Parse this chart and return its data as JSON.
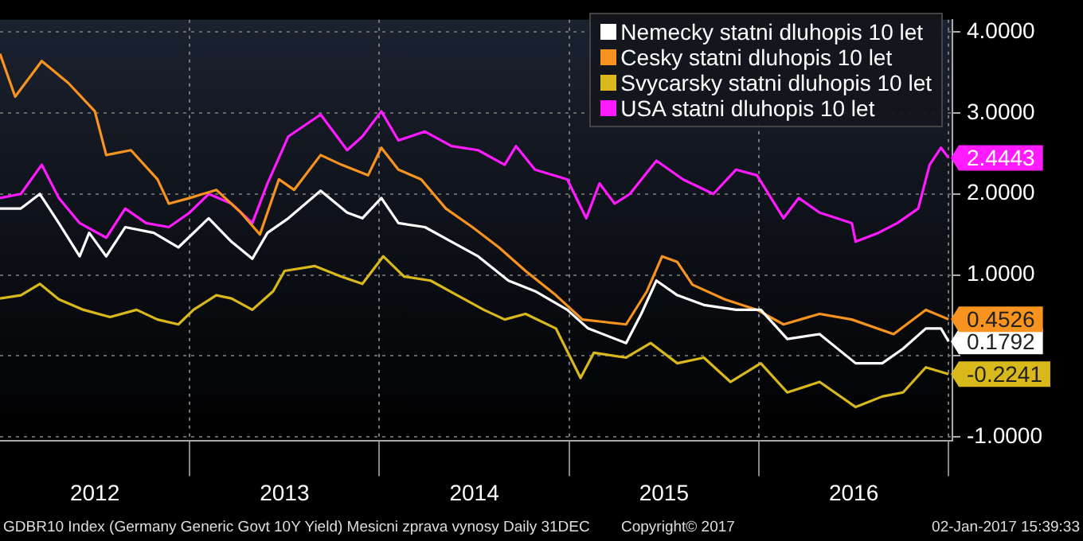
{
  "chart_data": {
    "type": "line",
    "xlim": [
      2012,
      2017.02
    ],
    "xticks": [
      {
        "value": 2012.5,
        "label": "2012"
      },
      {
        "value": 2013,
        "label": null
      },
      {
        "value": 2013.5,
        "label": "2013"
      },
      {
        "value": 2014,
        "label": null
      },
      {
        "value": 2014.5,
        "label": "2014"
      },
      {
        "value": 2015,
        "label": null
      },
      {
        "value": 2015.5,
        "label": "2015"
      },
      {
        "value": 2016,
        "label": null
      },
      {
        "value": 2016.5,
        "label": "2016"
      },
      {
        "value": 2017,
        "label": null
      }
    ],
    "ylim": [
      -1.05,
      4.15
    ],
    "yticks": [
      {
        "value": -1,
        "label": "-1.0000"
      },
      {
        "value": 0,
        "label": null
      },
      {
        "value": 1,
        "label": "1.0000"
      },
      {
        "value": 2,
        "label": "2.0000"
      },
      {
        "value": 3,
        "label": "3.0000"
      },
      {
        "value": 4,
        "label": "4.0000"
      }
    ],
    "grid": true,
    "legend": "top right",
    "line_style": "solid",
    "marker": "none",
    "annotations": [
      "GDBR10 Index (Germany Generic Govt 10Y Yield) Mesicni zprava vynosy  Daily 31DEC",
      "Copyright© 2017",
      "02-Jan-2017 15:39:33"
    ],
    "series": [
      {
        "name": "Nemecky statni dluhopis 10 let",
        "color": "#ffffff",
        "x": [
          2012.0,
          2012.11,
          2012.21,
          2012.31,
          2012.42,
          2012.47,
          2012.56,
          2012.66,
          2012.81,
          2012.94,
          2013.1,
          2013.22,
          2013.33,
          2013.41,
          2013.52,
          2013.69,
          2013.83,
          2013.91,
          2014.01,
          2014.1,
          2014.24,
          2014.38,
          2014.52,
          2014.68,
          2014.82,
          2014.99,
          2015.1,
          2015.3,
          2015.38,
          2015.46,
          2015.57,
          2015.71,
          2015.88,
          2016.01,
          2016.15,
          2016.32,
          2016.51,
          2016.65,
          2016.76,
          2016.88,
          2016.96,
          2017.0
        ],
        "values": [
          1.82,
          1.82,
          2.0,
          1.64,
          1.23,
          1.52,
          1.23,
          1.59,
          1.52,
          1.34,
          1.7,
          1.41,
          1.2,
          1.52,
          1.7,
          2.04,
          1.77,
          1.7,
          1.95,
          1.64,
          1.59,
          1.41,
          1.23,
          0.93,
          0.8,
          0.57,
          0.34,
          0.16,
          0.52,
          0.93,
          0.75,
          0.63,
          0.57,
          0.57,
          0.21,
          0.27,
          -0.09,
          -0.09,
          0.09,
          0.34,
          0.34,
          0.1792
        ],
        "value_labels": [
          null,
          null,
          null,
          null,
          null,
          null,
          null,
          null,
          null,
          null,
          null,
          null,
          null,
          null,
          null,
          null,
          null,
          null,
          null,
          null,
          null,
          null,
          null,
          null,
          null,
          null,
          null,
          null,
          null,
          null,
          null,
          null,
          null,
          null,
          null,
          null,
          null,
          null,
          null,
          null,
          null,
          "0.1792"
        ]
      },
      {
        "name": "Cesky statni dluhopis 10 let",
        "color": "#f7931e",
        "x": [
          2012.0,
          2012.08,
          2012.22,
          2012.36,
          2012.5,
          2012.56,
          2012.69,
          2012.83,
          2012.89,
          2013.0,
          2013.14,
          2013.27,
          2013.37,
          2013.47,
          2013.55,
          2013.69,
          2013.8,
          2013.94,
          2014.01,
          2014.1,
          2014.22,
          2014.35,
          2014.49,
          2014.63,
          2014.77,
          2014.93,
          2015.07,
          2015.3,
          2015.41,
          2015.49,
          2015.57,
          2015.65,
          2015.82,
          2015.99,
          2016.13,
          2016.32,
          2016.49,
          2016.71,
          2016.88,
          2017.0
        ],
        "values": [
          3.73,
          3.2,
          3.64,
          3.37,
          3.02,
          2.48,
          2.54,
          2.18,
          1.88,
          1.95,
          2.05,
          1.77,
          1.5,
          2.18,
          2.05,
          2.48,
          2.36,
          2.23,
          2.57,
          2.3,
          2.18,
          1.82,
          1.59,
          1.34,
          1.05,
          0.75,
          0.45,
          0.39,
          0.8,
          1.23,
          1.16,
          0.88,
          0.7,
          0.57,
          0.39,
          0.52,
          0.45,
          0.27,
          0.57,
          0.4526
        ],
        "value_labels": [
          null,
          null,
          null,
          null,
          null,
          null,
          null,
          null,
          null,
          null,
          null,
          null,
          null,
          null,
          null,
          null,
          null,
          null,
          null,
          null,
          null,
          null,
          null,
          null,
          null,
          null,
          null,
          null,
          null,
          null,
          null,
          null,
          null,
          null,
          null,
          null,
          null,
          null,
          null,
          "0.4526"
        ]
      },
      {
        "name": "Svycarsky statni dluhopis 10 let",
        "color": "#d9b81c",
        "x": [
          2012.0,
          2012.11,
          2012.21,
          2012.31,
          2012.44,
          2012.58,
          2012.72,
          2012.83,
          2012.94,
          2013.02,
          2013.14,
          2013.22,
          2013.33,
          2013.44,
          2013.5,
          2013.66,
          2013.8,
          2013.91,
          2014.02,
          2014.13,
          2014.27,
          2014.41,
          2014.55,
          2014.66,
          2014.77,
          2014.93,
          2015.06,
          2015.13,
          2015.3,
          2015.43,
          2015.57,
          2015.71,
          2015.85,
          2016.01,
          2016.15,
          2016.32,
          2016.51,
          2016.65,
          2016.76,
          2016.88,
          2017.0
        ],
        "values": [
          0.71,
          0.75,
          0.89,
          0.7,
          0.57,
          0.48,
          0.57,
          0.45,
          0.39,
          0.57,
          0.75,
          0.71,
          0.57,
          0.8,
          1.05,
          1.11,
          0.98,
          0.89,
          1.23,
          0.98,
          0.93,
          0.75,
          0.57,
          0.45,
          0.52,
          0.34,
          -0.27,
          0.04,
          -0.02,
          0.16,
          -0.09,
          -0.02,
          -0.32,
          -0.09,
          -0.45,
          -0.32,
          -0.63,
          -0.5,
          -0.45,
          -0.14,
          -0.2241
        ],
        "value_labels": [
          null,
          null,
          null,
          null,
          null,
          null,
          null,
          null,
          null,
          null,
          null,
          null,
          null,
          null,
          null,
          null,
          null,
          null,
          null,
          null,
          null,
          null,
          null,
          null,
          null,
          null,
          null,
          null,
          null,
          null,
          null,
          null,
          null,
          null,
          null,
          null,
          null,
          null,
          null,
          null,
          "-0.2241"
        ]
      },
      {
        "name": "USA statni dluhopis 10 let",
        "color": "#ff1aff",
        "x": [
          2012.0,
          2012.11,
          2012.22,
          2012.31,
          2012.42,
          2012.56,
          2012.66,
          2012.77,
          2012.89,
          2013.0,
          2013.1,
          2013.22,
          2013.33,
          2013.41,
          2013.52,
          2013.69,
          2013.83,
          2013.91,
          2014.01,
          2014.1,
          2014.24,
          2014.38,
          2014.52,
          2014.66,
          2014.72,
          2014.82,
          2014.99,
          2015.09,
          2015.16,
          2015.24,
          2015.32,
          2015.46,
          2015.6,
          2015.76,
          2015.88,
          2015.99,
          2016.13,
          2016.21,
          2016.32,
          2016.49,
          2016.51,
          2016.63,
          2016.73,
          2016.84,
          2016.9,
          2016.96,
          2017.0
        ],
        "values": [
          1.95,
          2.0,
          2.36,
          1.95,
          1.64,
          1.46,
          1.82,
          1.64,
          1.59,
          1.77,
          2.0,
          1.88,
          1.64,
          2.13,
          2.71,
          2.98,
          2.54,
          2.71,
          3.02,
          2.66,
          2.77,
          2.59,
          2.54,
          2.36,
          2.59,
          2.3,
          2.18,
          1.7,
          2.13,
          1.88,
          2.0,
          2.41,
          2.18,
          2.0,
          2.3,
          2.23,
          1.7,
          1.95,
          1.77,
          1.64,
          1.41,
          1.52,
          1.64,
          1.82,
          2.36,
          2.57,
          2.4443
        ],
        "value_labels": [
          null,
          null,
          null,
          null,
          null,
          null,
          null,
          null,
          null,
          null,
          null,
          null,
          null,
          null,
          null,
          null,
          null,
          null,
          null,
          null,
          null,
          null,
          null,
          null,
          null,
          null,
          null,
          null,
          null,
          null,
          null,
          null,
          null,
          null,
          null,
          null,
          null,
          null,
          null,
          null,
          null,
          null,
          null,
          null,
          null,
          null,
          "2.4443"
        ]
      }
    ]
  }
}
